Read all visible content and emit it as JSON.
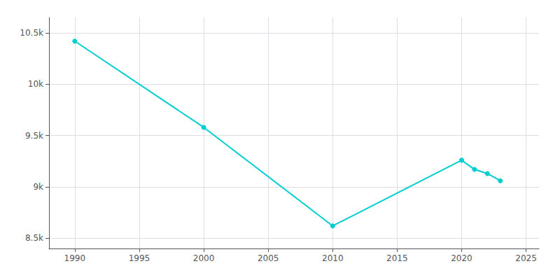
{
  "chart_data": {
    "type": "line",
    "x": [
      1990,
      2000,
      2010,
      2020,
      2021,
      2022,
      2023
    ],
    "values": [
      10420,
      9580,
      8620,
      9260,
      9170,
      9130,
      9060
    ],
    "color": "#00CED1",
    "marker": "circle",
    "xlim": [
      1988,
      2026
    ],
    "xticks": [
      1990,
      1995,
      2000,
      2005,
      2010,
      2015,
      2020,
      2025
    ],
    "ylim": [
      8400,
      10650
    ],
    "yticks": [
      {
        "value": 8500,
        "label": "8.5k"
      },
      {
        "value": 9000,
        "label": "9k"
      },
      {
        "value": 9500,
        "label": "9.5k"
      },
      {
        "value": 10000,
        "label": "10k"
      },
      {
        "value": 10500,
        "label": "10.5k"
      }
    ],
    "grid": true
  }
}
